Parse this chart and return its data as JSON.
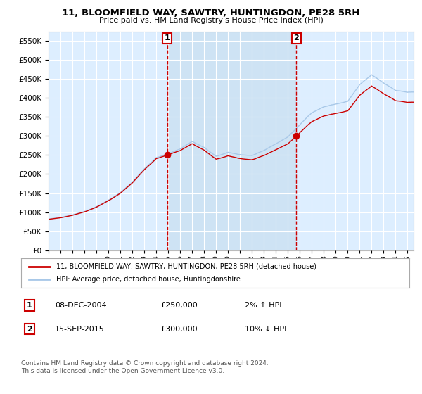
{
  "title": "11, BLOOMFIELD WAY, SAWTRY, HUNTINGDON, PE28 5RH",
  "subtitle": "Price paid vs. HM Land Registry's House Price Index (HPI)",
  "legend_line1": "11, BLOOMFIELD WAY, SAWTRY, HUNTINGDON, PE28 5RH (detached house)",
  "legend_line2": "HPI: Average price, detached house, Huntingdonshire",
  "footnote": "Contains HM Land Registry data © Crown copyright and database right 2024.\nThis data is licensed under the Open Government Licence v3.0.",
  "annotation1_label": "1",
  "annotation1_date": "08-DEC-2004",
  "annotation1_price": "£250,000",
  "annotation1_hpi": "2% ↑ HPI",
  "annotation2_label": "2",
  "annotation2_date": "15-SEP-2015",
  "annotation2_price": "£300,000",
  "annotation2_hpi": "10% ↓ HPI",
  "sale1_year": 2004.92,
  "sale1_value": 250000,
  "sale2_year": 2015.71,
  "sale2_value": 300000,
  "hpi_color": "#a8c8e8",
  "price_color": "#cc0000",
  "background_color": "#ffffff",
  "plot_bg_color": "#ddeeff",
  "shade_color": "#c8dff0",
  "grid_color": "#ffffff",
  "annotation_line_color": "#cc0000",
  "ylim_min": 0,
  "ylim_max": 575000,
  "xlim_min": 1995.0,
  "xlim_max": 2025.5
}
